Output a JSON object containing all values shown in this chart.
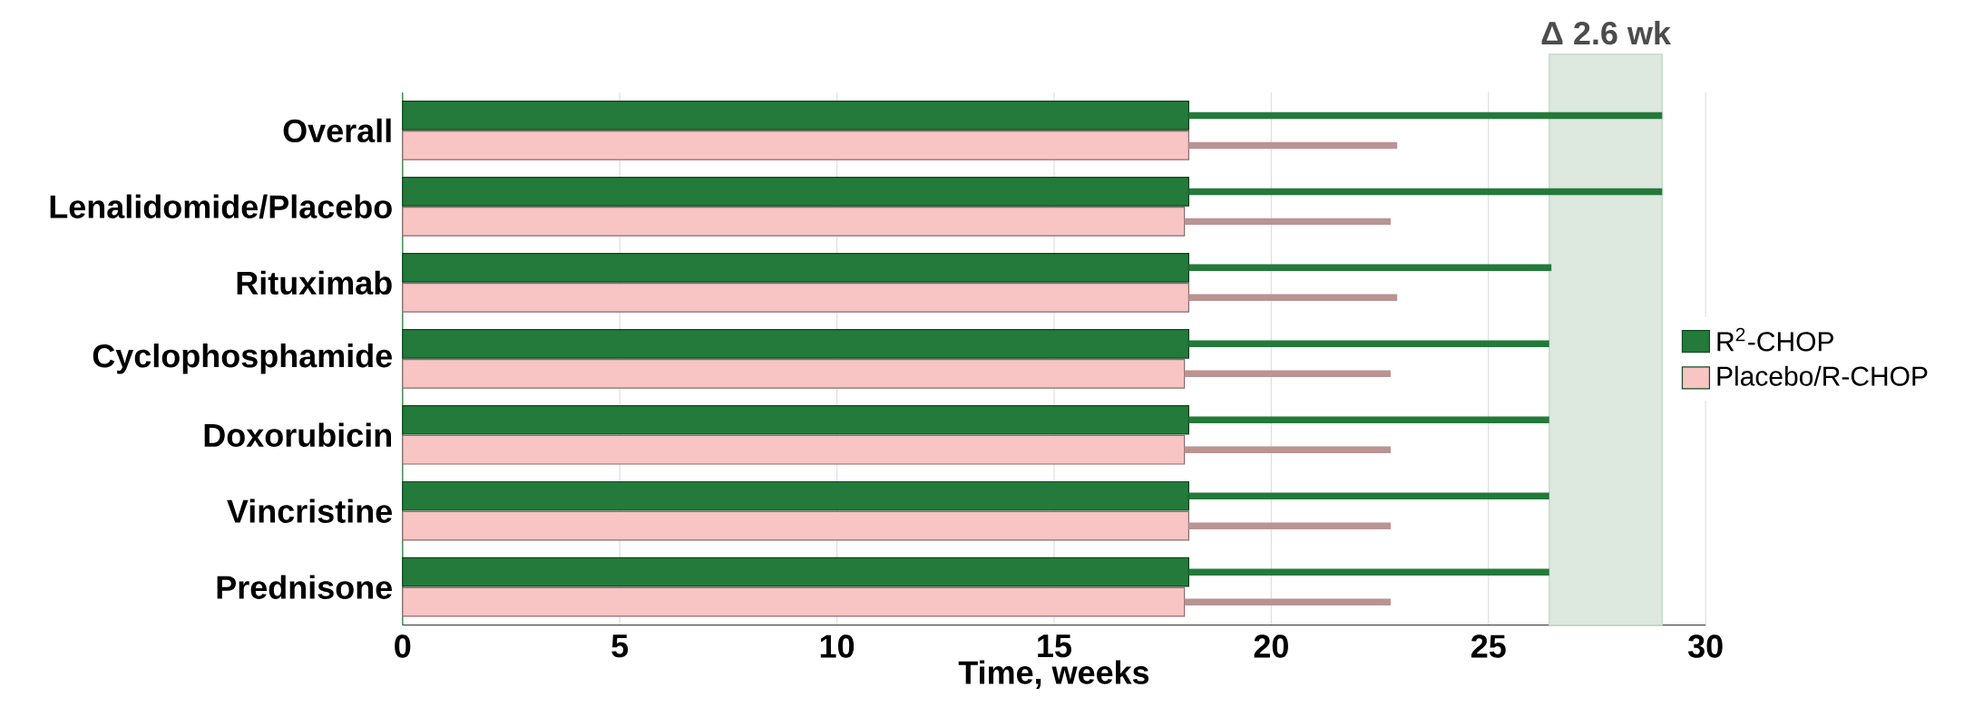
{
  "chart_data": {
    "type": "bar",
    "orientation": "horizontal",
    "xlabel": "Time, weeks",
    "categories": [
      "Overall",
      "Lenalidomide/Placebo",
      "Rituximab",
      "Cyclophosphamide",
      "Doxorubicin",
      "Vincristine",
      "Prednisone"
    ],
    "series": [
      {
        "name": "R$^{2}$-CHOP",
        "color": "#237a3a",
        "values": [
          18.1,
          18.1,
          18.1,
          18.1,
          18.1,
          18.1,
          18.1
        ],
        "errors": [
          [
            18.1,
            29.0
          ],
          [
            18.1,
            29.0
          ],
          [
            18.1,
            26.45
          ],
          [
            18.1,
            26.4
          ],
          [
            18.1,
            26.4
          ],
          [
            18.1,
            26.4
          ],
          [
            18.1,
            26.4
          ]
        ]
      },
      {
        "name": "Placebo/R-CHOP",
        "color": "#f8c4c4",
        "values": [
          18.1,
          18.0,
          18.1,
          18.0,
          18.0,
          18.1,
          18.0
        ],
        "errors": [
          [
            18.1,
            22.9
          ],
          [
            18.0,
            22.75
          ],
          [
            18.1,
            22.9
          ],
          [
            18.0,
            22.75
          ],
          [
            18.0,
            22.75
          ],
          [
            18.1,
            22.75
          ],
          [
            18.0,
            22.75
          ]
        ]
      }
    ],
    "xlim": [
      0,
      30
    ],
    "xticks": [
      0,
      5,
      10,
      15,
      20,
      25,
      30
    ],
    "grid": "x",
    "legend": "right",
    "bands": [
      {
        "axis": "x",
        "from": 26.4,
        "to": 29.0,
        "label": "Δ 2.6 wk",
        "color": "#dde8df"
      }
    ]
  }
}
